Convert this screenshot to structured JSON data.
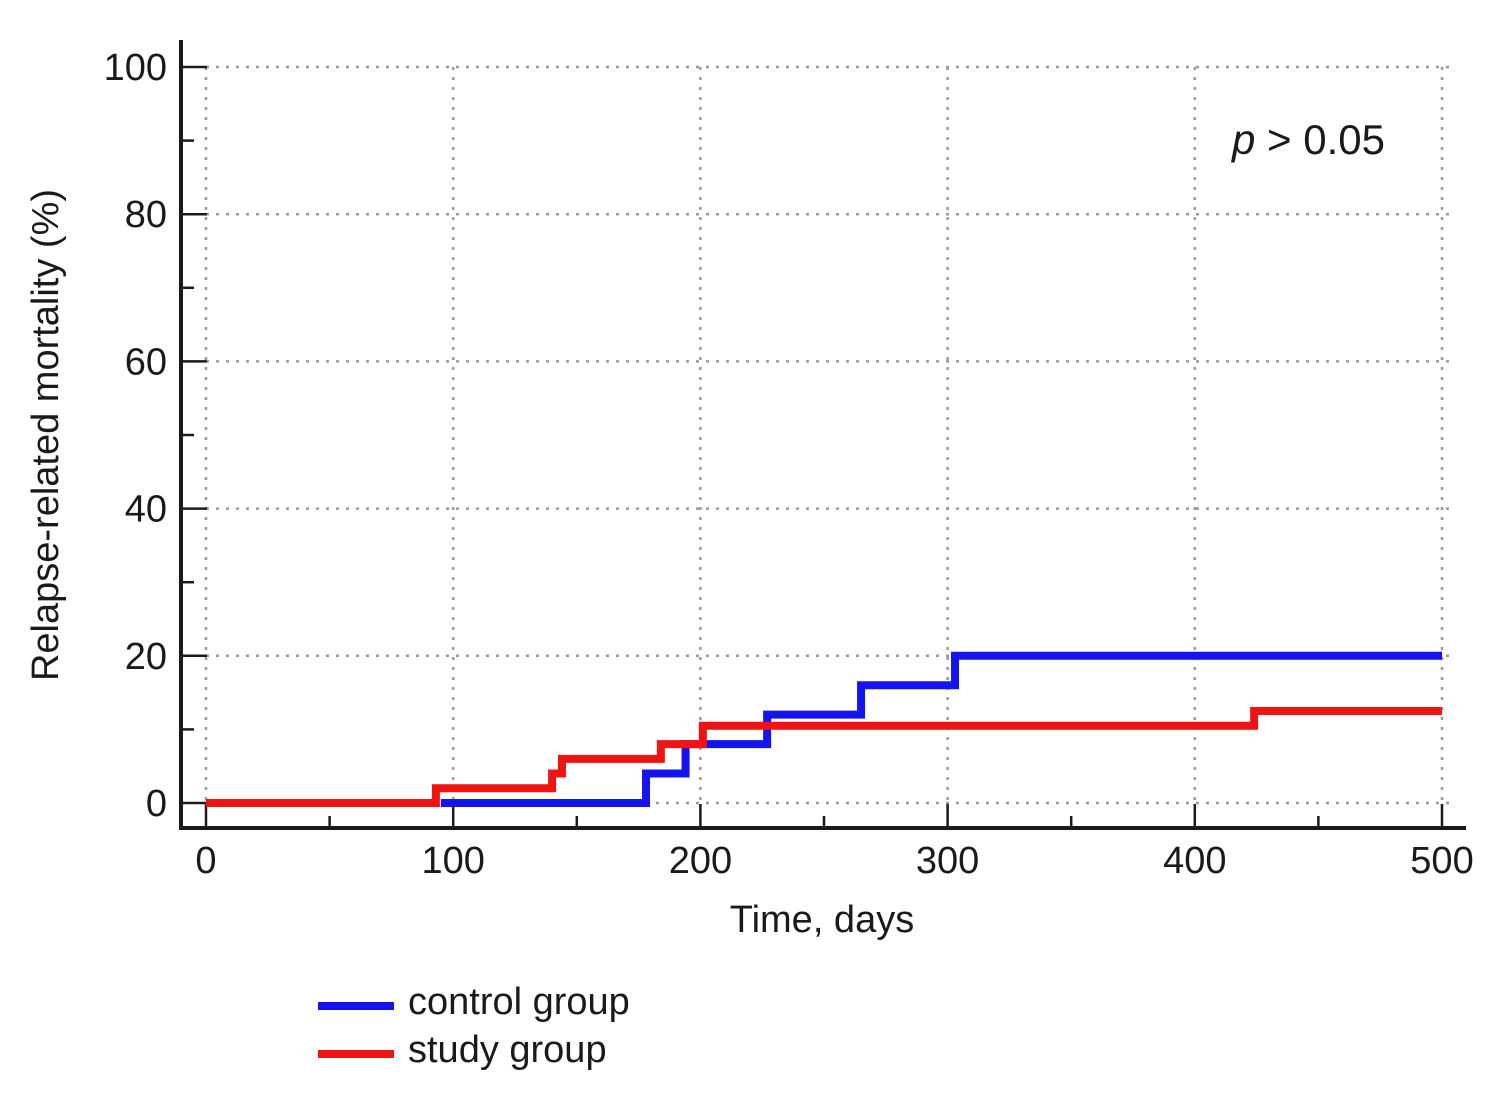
{
  "chart_data": {
    "type": "line",
    "step": true,
    "xlabel": "Time, days",
    "ylabel": "Relapse-related mortality (%)",
    "xlim": [
      0,
      500
    ],
    "ylim": [
      0,
      100
    ],
    "x_ticks": [
      0,
      100,
      200,
      300,
      400,
      500
    ],
    "y_ticks": [
      0,
      20,
      40,
      60,
      80,
      100
    ],
    "x_minor_ticks": [
      50,
      150,
      250,
      350,
      450
    ],
    "y_minor_ticks": [
      10,
      30,
      50,
      70,
      90
    ],
    "grid": true,
    "annotation": {
      "italic": "p",
      "rest": " > 0.05"
    },
    "legend_position": "bottom-left",
    "series": [
      {
        "name": "control group",
        "color": "#1414ee",
        "x": [
          95,
          178,
          194,
          227,
          265,
          303,
          500
        ],
        "y": [
          0,
          4,
          8,
          12,
          16,
          20,
          20
        ]
      },
      {
        "name": "study group",
        "color": "#ee1414",
        "x": [
          0,
          93,
          140,
          144,
          184,
          201,
          424,
          500
        ],
        "y": [
          0,
          2,
          4,
          6,
          8,
          10.5,
          12.5,
          12.5
        ]
      }
    ]
  }
}
